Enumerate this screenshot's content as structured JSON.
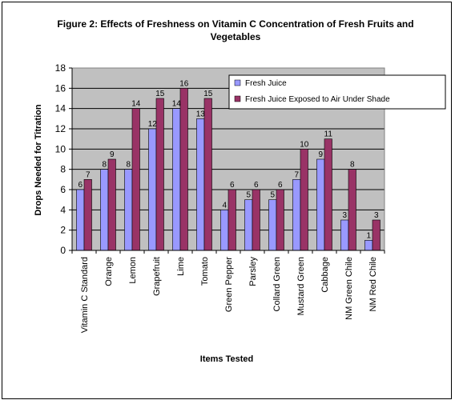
{
  "chart_data": {
    "type": "bar",
    "title": "Figure 2: Effects of Freshness on Vitamin C Concentration of Fresh Fruits and Vegetables",
    "title_lines": [
      "Figure 2: Effects of Freshness on Vitamin C Concentration of Fresh Fruits and",
      "Vegetables"
    ],
    "xlabel": "Items Tested",
    "ylabel": "Drops Needed for Titration",
    "ylim": [
      0,
      18
    ],
    "yticks": [
      0,
      2,
      4,
      6,
      8,
      10,
      12,
      14,
      16,
      18
    ],
    "grid": true,
    "legend_position": "top-right",
    "plot_background": "#C0C0C0",
    "categories": [
      "Vitamin C Standard",
      "Orange",
      "Lemon",
      "Grapefruit",
      "Lime",
      "Tomato",
      "Green Pepper",
      "Parsley",
      "Collard Green",
      "Mustard Green",
      "Cabbage",
      "NM Green Chile",
      "NM Red Chile"
    ],
    "series": [
      {
        "name": "Fresh Juice",
        "color": "#9999FF",
        "values": [
          6,
          8,
          8,
          12,
          14,
          13,
          4,
          5,
          5,
          7,
          9,
          3,
          1
        ]
      },
      {
        "name": "Fresh Juice Exposed to Air Under Shade",
        "color": "#993366",
        "values": [
          7,
          9,
          14,
          15,
          16,
          15,
          6,
          6,
          6,
          10,
          11,
          8,
          3
        ]
      }
    ]
  }
}
